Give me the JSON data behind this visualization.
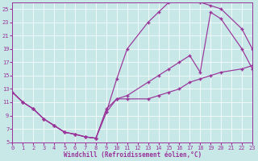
{
  "bg_color": "#c8e8e8",
  "line_color": "#993399",
  "xlabel": "Windchill (Refroidissement éolien,°C)",
  "xlim": [
    0,
    23
  ],
  "ylim": [
    5,
    26
  ],
  "xticks": [
    0,
    1,
    2,
    3,
    4,
    5,
    6,
    7,
    8,
    9,
    10,
    11,
    12,
    13,
    14,
    15,
    16,
    17,
    18,
    19,
    20,
    21,
    22,
    23
  ],
  "yticks": [
    5,
    7,
    9,
    11,
    13,
    15,
    17,
    19,
    21,
    23,
    25
  ],
  "curve1_x": [
    0,
    1,
    2,
    3,
    4,
    5,
    6,
    7,
    8,
    9,
    10,
    11,
    13,
    14,
    15,
    16,
    17,
    18,
    19,
    20,
    22,
    23
  ],
  "curve1_y": [
    12.5,
    11,
    10,
    8.5,
    7.5,
    6.5,
    6.2,
    5.8,
    5.6,
    9.5,
    14.5,
    19,
    23,
    24.5,
    26,
    26.5,
    26.5,
    26,
    25.5,
    25,
    22,
    19
  ],
  "curve2_x": [
    0,
    1,
    2,
    3,
    4,
    5,
    6,
    7,
    8,
    9,
    10,
    11,
    13,
    14,
    15,
    16,
    17,
    18,
    19,
    20,
    22,
    23
  ],
  "curve2_y": [
    12.5,
    11,
    10,
    8.5,
    7.5,
    6.5,
    6.2,
    5.8,
    5.6,
    9.5,
    11.5,
    12,
    14,
    15,
    16,
    17,
    18,
    15.5,
    24.5,
    23.5,
    19,
    16
  ],
  "curve3_x": [
    0,
    1,
    2,
    3,
    4,
    5,
    6,
    7,
    8,
    9,
    10,
    11,
    13,
    14,
    15,
    16,
    17,
    18,
    19,
    20,
    22,
    23
  ],
  "curve3_y": [
    12.5,
    11,
    10,
    8.5,
    7.5,
    6.5,
    6.2,
    5.8,
    5.6,
    10,
    11.5,
    11.5,
    11.5,
    12,
    12.5,
    13,
    14,
    14.5,
    15,
    15.5,
    16,
    16.5
  ]
}
